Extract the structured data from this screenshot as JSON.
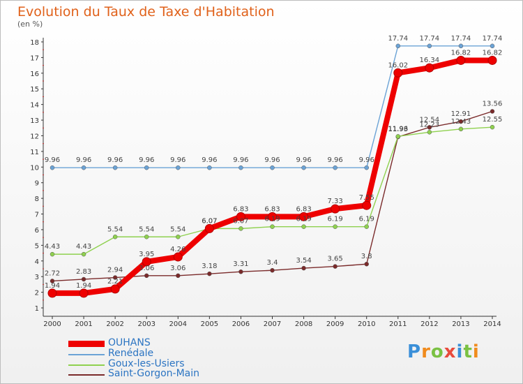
{
  "title": "Evolution du Taux de Taxe d'Habitation",
  "subtitle": "(en %)",
  "logo": "Proxiti",
  "chart_data": {
    "type": "line",
    "x": [
      2000,
      2001,
      2002,
      2003,
      2004,
      2005,
      2006,
      2007,
      2008,
      2009,
      2010,
      2011,
      2012,
      2013,
      2014
    ],
    "ylim": [
      1,
      18
    ],
    "yticks": [
      1,
      2,
      3,
      4,
      5,
      6,
      7,
      8,
      9,
      10,
      11,
      12,
      13,
      14,
      15,
      16,
      17,
      18
    ],
    "grid": false,
    "legend_position": "bottom",
    "series": [
      {
        "name": "OUHANS",
        "color": "#ee0000",
        "values": [
          1.94,
          1.94,
          2.21,
          3.95,
          4.26,
          6.07,
          6.83,
          6.83,
          6.83,
          7.33,
          7.55,
          16.02,
          16.34,
          16.82,
          16.82
        ],
        "labels": [
          "1.94",
          "1.94",
          "2.21",
          "3.95",
          "4.26",
          "6.07",
          "6.83",
          "6.83",
          "6.83",
          "7.33",
          "7.55",
          "16.02",
          "16.34",
          "16.82",
          "16.82"
        ]
      },
      {
        "name": "Renédale",
        "color": "#6ba3d6",
        "values": [
          9.96,
          9.96,
          9.96,
          9.96,
          9.96,
          9.96,
          9.96,
          9.96,
          9.96,
          9.96,
          9.96,
          17.74,
          17.74,
          17.74,
          17.74
        ],
        "labels": [
          "9.96",
          "9.96",
          "9.96",
          "9.96",
          "9.96",
          "9.96",
          "9.96",
          "9.96",
          "9.96",
          "9.96",
          "9.96",
          "17.74",
          "17.74",
          "17.74",
          "17.74"
        ]
      },
      {
        "name": "Goux-les-Usiers",
        "color": "#8fd14f",
        "values": [
          4.43,
          4.43,
          5.54,
          5.54,
          5.54,
          6.07,
          6.07,
          6.19,
          6.19,
          6.19,
          6.19,
          11.96,
          12.23,
          12.43,
          12.55
        ],
        "labels": [
          "4.43",
          "4.43",
          "5.54",
          "5.54",
          "5.54",
          "6.07",
          "6.07",
          "6.19",
          "6.19",
          "6.19",
          "6.19",
          "11.96",
          "12.23",
          "12.43",
          "12.55"
        ]
      },
      {
        "name": "Saint-Gorgon-Main",
        "color": "#7a2a2a",
        "values": [
          2.72,
          2.83,
          2.94,
          3.06,
          3.06,
          3.18,
          3.31,
          3.4,
          3.54,
          3.65,
          3.8,
          11.93,
          12.54,
          12.91,
          13.56
        ],
        "labels": [
          "2.72",
          "2.83",
          "2.94",
          "3.06",
          "3.06",
          "3.18",
          "3.31",
          "3.4",
          "3.54",
          "3.65",
          "3.8",
          "11.93",
          "12.54",
          "12.91",
          "13.56"
        ]
      }
    ]
  }
}
